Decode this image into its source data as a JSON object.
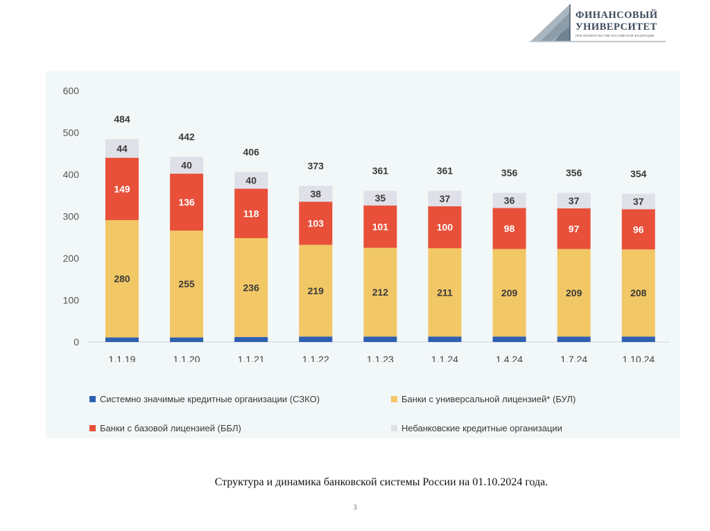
{
  "logo": {
    "line1": "ФИНАНСОВЫЙ",
    "line2": "УНИВЕРСИТЕТ",
    "line3": "ПРИ ПРАВИТЕЛЬСТВЕ РОССИЙСКОЙ ФЕДЕРАЦИИ"
  },
  "chart_data": {
    "type": "bar",
    "stacked": true,
    "title": "",
    "xlabel": "",
    "ylabel": "",
    "ylim": [
      0,
      600
    ],
    "yticks": [
      "0",
      "100",
      "200",
      "300",
      "400",
      "500",
      "600"
    ],
    "grid": false,
    "legend_position": "bottom",
    "categories": [
      "1.1.19",
      "1.1.20",
      "1.1.21",
      "1.1.22",
      "1.1.23",
      "1.1.24",
      "1.4.24",
      "1.7.24",
      "1.10.24"
    ],
    "totals": [
      "484",
      "442",
      "406",
      "373",
      "361",
      "361",
      "356",
      "356",
      "354"
    ],
    "series": [
      {
        "name": "Системно значимые кредитные организации (СЗКО)",
        "color": "#2e5fb0",
        "label_color": "#2e5fb0",
        "values": [
          11,
          11,
          12,
          13,
          13,
          13,
          13,
          13,
          13
        ]
      },
      {
        "name": "Банки с универсальной лицензией* (БУЛ)",
        "color": "#f2c766",
        "label_color": "#3a3a3a",
        "values": [
          280,
          255,
          236,
          219,
          212,
          211,
          209,
          209,
          208
        ]
      },
      {
        "name": "Банки с базовой лицензией (ББЛ)",
        "color": "#e8503a",
        "label_color": "#ffffff",
        "values": [
          149,
          136,
          118,
          103,
          101,
          100,
          98,
          97,
          96
        ]
      },
      {
        "name": "Небанковские кредитные организации",
        "color": "#dfe0e8",
        "label_color": "#3a3a3a",
        "values": [
          44,
          40,
          40,
          38,
          35,
          37,
          36,
          37,
          37
        ]
      }
    ]
  },
  "caption": "Структура и динамика банковской системы России на 01.10.2024 года.",
  "page_number": "3"
}
